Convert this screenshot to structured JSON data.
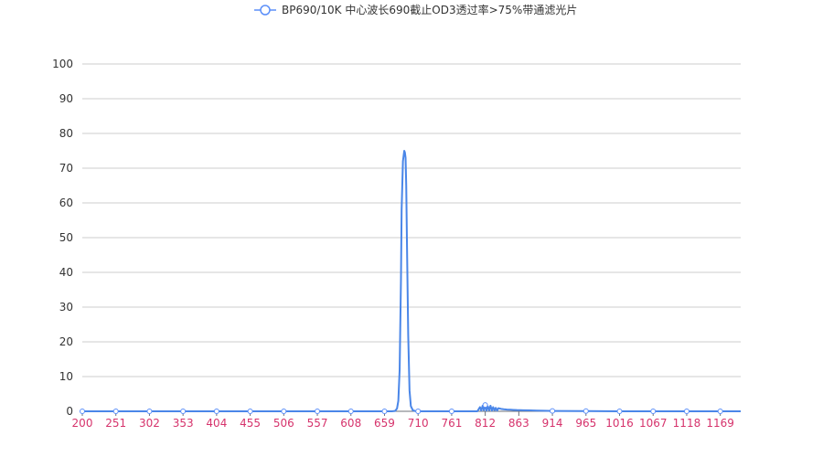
{
  "chart_data": {
    "type": "line",
    "legend": {
      "placement": "top-center",
      "label": "BP690/10K 中心波长690截止OD3透过率>75%带通滤光片",
      "marker": "circle"
    },
    "colors": {
      "series": "#5b8ff9",
      "line": "#4a86e8",
      "x_tick_label": "#d6336c",
      "y_tick_label": "#333333",
      "grid": "#cccccc",
      "axis": "#6e7079"
    },
    "ylim": [
      0,
      100
    ],
    "xlim": [
      200,
      1200
    ],
    "grid": true,
    "y_ticks": [
      "0",
      "10",
      "20",
      "30",
      "40",
      "50",
      "60",
      "70",
      "80",
      "90",
      "100"
    ],
    "x_ticks": [
      "200",
      "251",
      "302",
      "353",
      "404",
      "455",
      "506",
      "557",
      "608",
      "659",
      "710",
      "761",
      "812",
      "863",
      "914",
      "965",
      "1016",
      "1067",
      "1118",
      "1169"
    ],
    "series": [
      {
        "name": "BP690/10K 中心波长690截止OD3透过率>75%带通滤光片",
        "x": [
          200,
          251,
          302,
          353,
          404,
          455,
          506,
          557,
          608,
          659,
          670,
          675,
          678,
          680,
          682,
          684,
          685,
          687,
          689,
          690,
          691,
          692,
          693,
          695,
          697,
          699,
          702,
          706,
          710,
          761,
          800,
          804,
          806,
          808,
          810,
          812,
          814,
          816,
          818,
          820,
          822,
          824,
          826,
          828,
          830,
          832,
          836,
          840,
          845,
          850,
          855,
          860,
          870,
          880,
          890,
          900,
          914,
          965,
          1016,
          1067,
          1118,
          1169,
          1200
        ],
        "y": [
          0,
          0,
          0,
          0,
          0,
          0,
          0,
          0,
          0,
          0,
          0,
          0.1,
          0.8,
          3,
          12,
          38,
          58,
          72,
          75,
          74.5,
          73,
          65,
          50,
          22,
          6,
          1.5,
          0.3,
          0.05,
          0,
          0,
          0,
          1.2,
          0.2,
          1.6,
          0.3,
          1.8,
          0.2,
          1.4,
          0.3,
          1.6,
          0.2,
          1.2,
          0.3,
          1.0,
          0.2,
          0.9,
          0.7,
          0.6,
          0.5,
          0.45,
          0.4,
          0.35,
          0.3,
          0.25,
          0.2,
          0.15,
          0.1,
          0.05,
          0,
          0,
          0,
          0,
          0
        ]
      }
    ]
  }
}
